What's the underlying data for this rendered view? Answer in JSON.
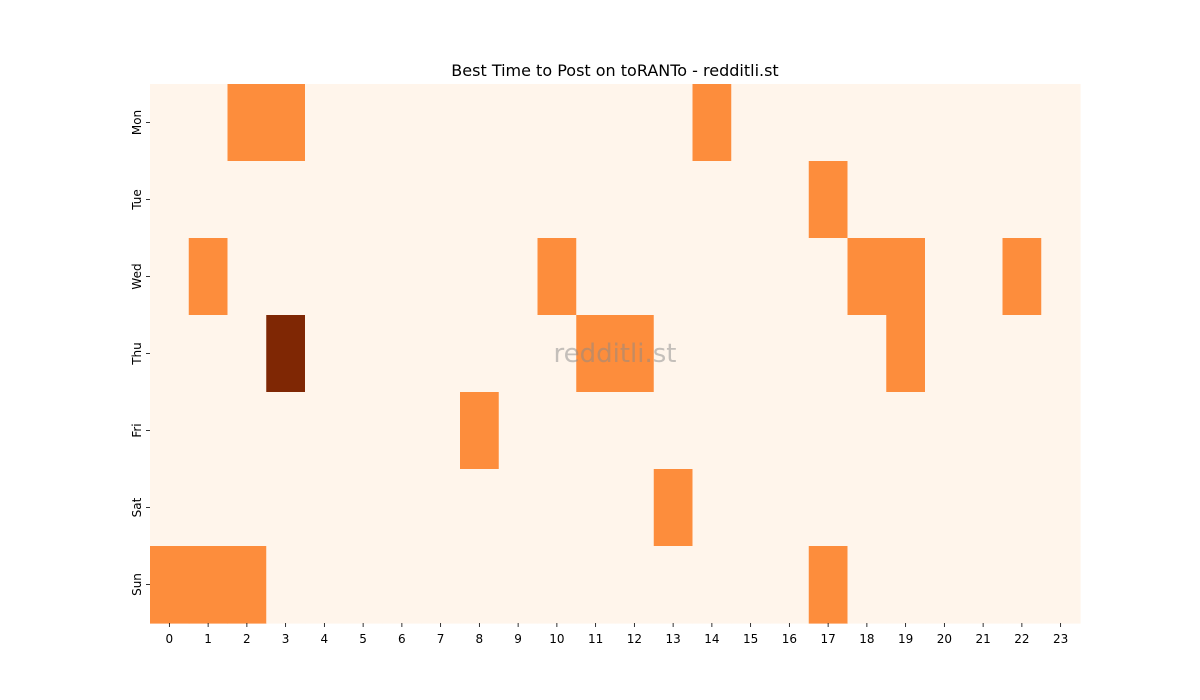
{
  "chart_data": {
    "type": "heatmap",
    "title": "Best Time to Post on toRANTo - redditli.st",
    "xlabel": "",
    "ylabel": "",
    "x_categories": [
      "0",
      "1",
      "2",
      "3",
      "4",
      "5",
      "6",
      "7",
      "8",
      "9",
      "10",
      "11",
      "12",
      "13",
      "14",
      "15",
      "16",
      "17",
      "18",
      "19",
      "20",
      "21",
      "22",
      "23"
    ],
    "y_categories": [
      "Mon",
      "Tue",
      "Wed",
      "Thu",
      "Fri",
      "Sat",
      "Sun"
    ],
    "values": [
      [
        0,
        0,
        1,
        1,
        0,
        0,
        0,
        0,
        0,
        0,
        0,
        0,
        0,
        0,
        1,
        0,
        0,
        0,
        0,
        0,
        0,
        0,
        0,
        0
      ],
      [
        0,
        0,
        0,
        0,
        0,
        0,
        0,
        0,
        0,
        0,
        0,
        0,
        0,
        0,
        0,
        0,
        0,
        1,
        0,
        0,
        0,
        0,
        0,
        0
      ],
      [
        0,
        1,
        0,
        0,
        0,
        0,
        0,
        0,
        0,
        0,
        1,
        0,
        0,
        0,
        0,
        0,
        0,
        0,
        1,
        1,
        0,
        0,
        1,
        0
      ],
      [
        0,
        0,
        0,
        2,
        0,
        0,
        0,
        0,
        0,
        0,
        0,
        1,
        1,
        0,
        0,
        0,
        0,
        0,
        0,
        1,
        0,
        0,
        0,
        0
      ],
      [
        0,
        0,
        0,
        0,
        0,
        0,
        0,
        0,
        1,
        0,
        0,
        0,
        0,
        0,
        0,
        0,
        0,
        0,
        0,
        0,
        0,
        0,
        0,
        0
      ],
      [
        0,
        0,
        0,
        0,
        0,
        0,
        0,
        0,
        0,
        0,
        0,
        0,
        0,
        1,
        0,
        0,
        0,
        0,
        0,
        0,
        0,
        0,
        0,
        0
      ],
      [
        1,
        1,
        1,
        0,
        0,
        0,
        0,
        0,
        0,
        0,
        0,
        0,
        0,
        0,
        0,
        0,
        0,
        1,
        0,
        0,
        0,
        0,
        0,
        0
      ]
    ],
    "colormap": [
      "#fff5eb",
      "#fd8d3c",
      "#7f2704"
    ],
    "watermark": "redditli.st",
    "grid": false,
    "legend": "none"
  }
}
